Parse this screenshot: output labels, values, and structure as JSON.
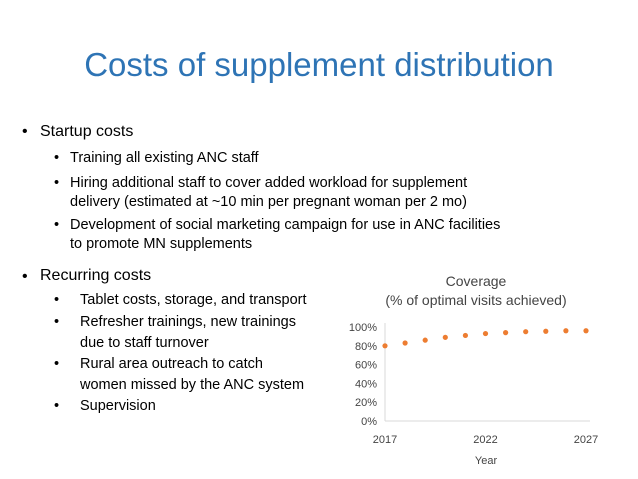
{
  "slide": {
    "title": "Costs of supplement distribution",
    "bullet_glyph": "•"
  },
  "startup": {
    "heading": "Startup costs",
    "items": [
      {
        "lines": [
          "Training all existing ANC staff"
        ]
      },
      {
        "lines": [
          "Hiring additional staff to cover added workload for supplement",
          "delivery (estimated at ~10 min per pregnant woman per 2 mo)"
        ]
      },
      {
        "lines": [
          "Development of social marketing campaign for use in ANC facilities",
          "to promote MN supplements"
        ]
      }
    ]
  },
  "recurring": {
    "heading": "Recurring costs",
    "items": [
      {
        "lines": [
          "Tablet costs, storage, and transport"
        ]
      },
      {
        "lines": [
          "Refresher trainings, new trainings",
          "due to staff turnover"
        ]
      },
      {
        "lines": [
          "Rural area outreach to catch",
          "women missed by the ANC system"
        ]
      },
      {
        "lines": [
          "Supervision"
        ]
      }
    ]
  },
  "chart_data": {
    "type": "scatter",
    "title": "Coverage",
    "subtitle": "(% of optimal visits achieved)",
    "xlabel": "Year",
    "ylabel": "",
    "x": [
      2017,
      2018,
      2019,
      2020,
      2021,
      2022,
      2023,
      2024,
      2025,
      2026,
      2027
    ],
    "y": [
      80,
      83,
      86,
      89,
      91,
      93,
      94,
      95,
      95.5,
      96,
      96
    ],
    "xlim": [
      2017,
      2027
    ],
    "ylim": [
      0,
      100
    ],
    "xticks": [
      "2017",
      "2022",
      "2027"
    ],
    "yticks": [
      "0%",
      "20%",
      "40%",
      "60%",
      "80%",
      "100%"
    ],
    "grid": false,
    "marker_color": "#ed7d31",
    "axis_color": "#d9d9d9"
  }
}
